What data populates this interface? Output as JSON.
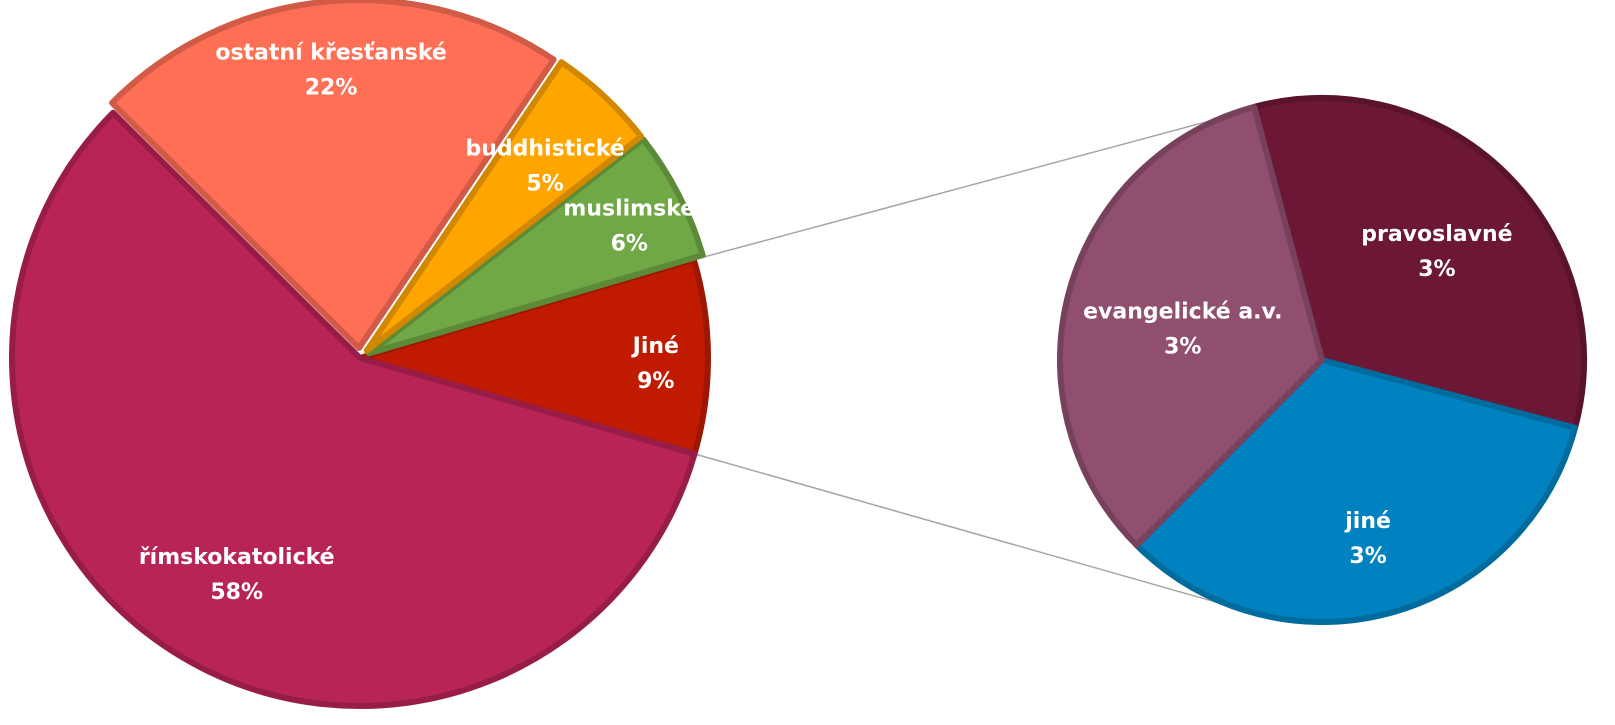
{
  "chart_data": [
    {
      "type": "pie",
      "role": "main",
      "start_angle_deg": 14,
      "direction": "counterclockwise",
      "slices": [
        {
          "label": "Jiné",
          "value": 9,
          "value_label": "9%",
          "color": "#C01B00",
          "exploded": false
        },
        {
          "label": "muslimské",
          "value": 6,
          "value_label": "6%",
          "color": "#70A845",
          "exploded": true
        },
        {
          "label": "buddhistické",
          "value": 5,
          "value_label": "5%",
          "color": "#FFA500",
          "exploded": true
        },
        {
          "label": "ostatní křesťanské",
          "value": 22,
          "value_label": "22%",
          "color": "#FF6F56",
          "exploded": true
        },
        {
          "label": "římskokatolické",
          "value": 58,
          "value_label": "58%",
          "color": "#B82358",
          "exploded": false
        }
      ]
    },
    {
      "type": "pie",
      "role": "breakdown of Jiné",
      "start_angle_deg": 105,
      "direction": "clockwise",
      "slices": [
        {
          "label": "pravoslavné",
          "value": 3,
          "value_label": "3%",
          "color": "#6D1736"
        },
        {
          "label": "jiné",
          "value": 3,
          "value_label": "3%",
          "color": "#0082C0"
        },
        {
          "label": "evangelické a.v.",
          "value": 3,
          "value_label": "3%",
          "color": "#914F70"
        }
      ]
    }
  ]
}
